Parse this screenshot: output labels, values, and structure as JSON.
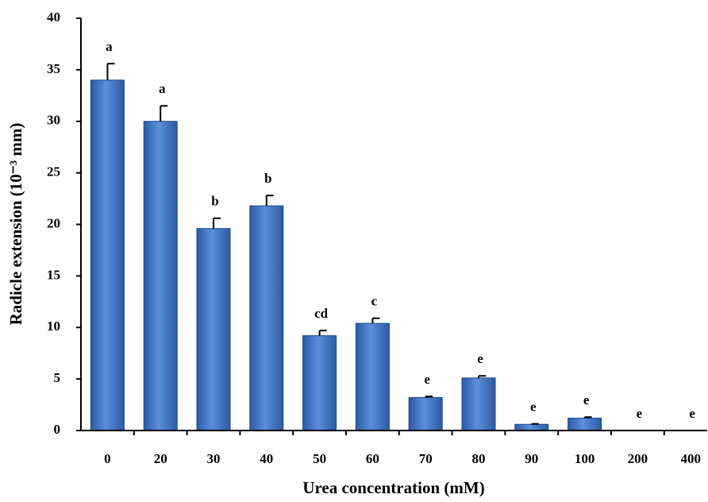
{
  "chart_data": {
    "type": "bar",
    "x_label": "Urea concentration (mM)",
    "y_label": "Radicle extension (10⁻³ mm)",
    "categories": [
      "0",
      "20",
      "30",
      "40",
      "50",
      "60",
      "70",
      "80",
      "90",
      "100",
      "200",
      "400"
    ],
    "values": [
      34.0,
      30.0,
      19.6,
      21.8,
      9.2,
      10.4,
      3.2,
      5.1,
      0.6,
      1.2,
      0,
      0
    ],
    "errors": [
      1.6,
      1.5,
      1.0,
      1.0,
      0.5,
      0.5,
      0.1,
      0.2,
      0.05,
      0.1,
      0,
      0
    ],
    "significance_letters": [
      "a",
      "a",
      "b",
      "b",
      "cd",
      "c",
      "e",
      "e",
      "e",
      "e",
      "e",
      "e"
    ],
    "color": "#3a6fbf",
    "ylim": [
      0,
      40
    ],
    "yticks": [
      0,
      5,
      10,
      15,
      20,
      25,
      30,
      35,
      40
    ]
  }
}
